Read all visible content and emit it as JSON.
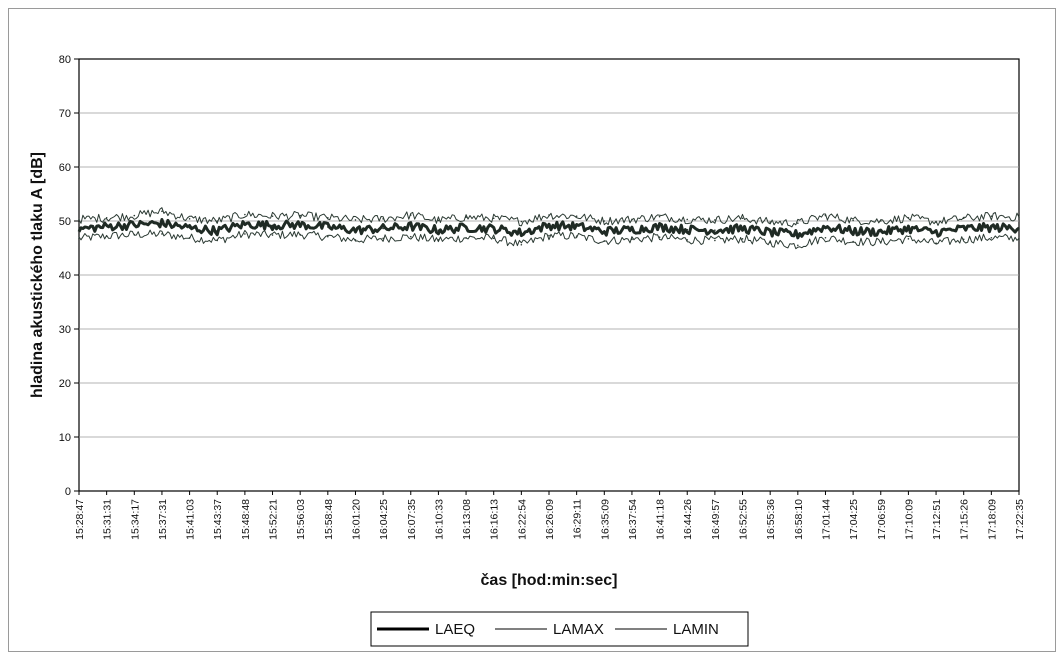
{
  "chart_data": {
    "type": "line",
    "title": "",
    "xlabel": "čas [hod:min:sec]",
    "ylabel": "hladina akustického tlaku A [dB]",
    "ylim": [
      0,
      80
    ],
    "yticks": [
      0,
      10,
      20,
      30,
      40,
      50,
      60,
      70,
      80
    ],
    "grid": "horizontal",
    "legend_position": "bottom",
    "categories": [
      "15:28:47",
      "15:31:31",
      "15:34:17",
      "15:37:31",
      "15:41:03",
      "15:43:37",
      "15:48:48",
      "15:52:21",
      "15:56:03",
      "15:58:48",
      "16:01:20",
      "16:04:25",
      "16:07:35",
      "16:10:33",
      "16:13:08",
      "16:16:13",
      "16:22:54",
      "16:26:09",
      "16:29:11",
      "16:35:09",
      "16:37:54",
      "16:41:18",
      "16:44:26",
      "16:49:57",
      "16:52:55",
      "16:55:36",
      "16:58:10",
      "17:01:44",
      "17:04:25",
      "17:06:59",
      "17:10:09",
      "17:12:51",
      "17:15:26",
      "17:18:09",
      "17:22:35"
    ],
    "series": [
      {
        "name": "LAEQ",
        "color": "#1f2a24",
        "width": 3,
        "values": [
          48.5,
          49.0,
          49.3,
          49.6,
          48.7,
          48.2,
          49.4,
          49.2,
          49.3,
          48.9,
          48.3,
          48.6,
          49.0,
          48.3,
          48.8,
          48.6,
          47.8,
          49.2,
          49.0,
          48.1,
          48.4,
          48.9,
          48.4,
          48.3,
          48.6,
          47.9,
          47.5,
          48.9,
          48.1,
          48.0,
          48.6,
          47.9,
          48.6,
          48.8,
          48.7
        ]
      },
      {
        "name": "LAMAX",
        "color": "#2b3a33",
        "width": 1,
        "values": [
          50.3,
          50.6,
          51.0,
          51.8,
          50.4,
          50.0,
          51.2,
          50.9,
          51.0,
          50.6,
          50.2,
          50.4,
          51.1,
          50.1,
          50.7,
          50.5,
          49.9,
          51.1,
          50.9,
          50.0,
          50.3,
          50.8,
          50.3,
          50.2,
          50.5,
          49.8,
          49.6,
          51.0,
          50.1,
          50.0,
          50.6,
          49.8,
          50.5,
          50.9,
          50.7
        ]
      },
      {
        "name": "LAMIN",
        "color": "#2b3a33",
        "width": 1,
        "values": [
          46.8,
          47.2,
          47.5,
          47.6,
          46.9,
          46.4,
          47.6,
          47.4,
          47.5,
          47.1,
          46.5,
          46.8,
          47.1,
          46.5,
          46.9,
          46.8,
          45.6,
          47.3,
          47.2,
          46.3,
          46.6,
          47.0,
          46.5,
          46.4,
          46.7,
          46.0,
          45.5,
          46.9,
          46.2,
          46.1,
          46.7,
          45.9,
          46.6,
          46.9,
          46.8
        ]
      }
    ]
  }
}
